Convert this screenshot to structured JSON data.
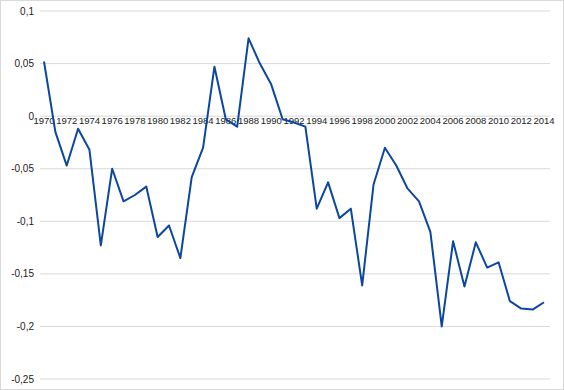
{
  "chart_data": {
    "type": "line",
    "x": [
      1970,
      1971,
      1972,
      1973,
      1974,
      1975,
      1976,
      1977,
      1978,
      1979,
      1980,
      1981,
      1982,
      1983,
      1984,
      1985,
      1986,
      1987,
      1988,
      1989,
      1990,
      1991,
      1992,
      1993,
      1994,
      1995,
      1996,
      1997,
      1998,
      1999,
      2000,
      2001,
      2002,
      2003,
      2004,
      2005,
      2006,
      2007,
      2008,
      2009,
      2010,
      2011,
      2012,
      2013,
      2014
    ],
    "values": [
      0.052,
      -0.015,
      -0.047,
      -0.012,
      -0.032,
      -0.123,
      -0.05,
      -0.081,
      -0.075,
      -0.067,
      -0.115,
      -0.104,
      -0.135,
      -0.058,
      -0.03,
      0.047,
      -0.003,
      -0.01,
      0.074,
      0.05,
      0.03,
      -0.003,
      -0.006,
      -0.01,
      -0.088,
      -0.063,
      -0.097,
      -0.088,
      -0.161,
      -0.065,
      -0.03,
      -0.047,
      -0.069,
      -0.081,
      -0.11,
      -0.2,
      -0.119,
      -0.162,
      -0.12,
      -0.144,
      -0.139,
      -0.176,
      -0.183,
      -0.184,
      -0.177
    ],
    "color": "#0b47a1",
    "xlim": [
      1970,
      2014
    ],
    "xticks": [
      1970,
      1972,
      1974,
      1976,
      1978,
      1980,
      1982,
      1984,
      1986,
      1988,
      1990,
      1992,
      1994,
      1996,
      1998,
      2000,
      2002,
      2004,
      2006,
      2008,
      2010,
      2012,
      2014
    ],
    "ylim": [
      -0.25,
      0.1
    ],
    "yticks": [
      {
        "value": 0.1,
        "label": "0,1"
      },
      {
        "value": 0.05,
        "label": "0,05"
      },
      0,
      {
        "value": -0.05,
        "label": "-0,05"
      },
      {
        "value": -0.1,
        "label": "-0,1"
      },
      {
        "value": -0.15,
        "label": "-0,15"
      },
      {
        "value": -0.2,
        "label": "-0,2"
      },
      {
        "value": -0.25,
        "label": "-0,25"
      }
    ],
    "grid": true
  }
}
